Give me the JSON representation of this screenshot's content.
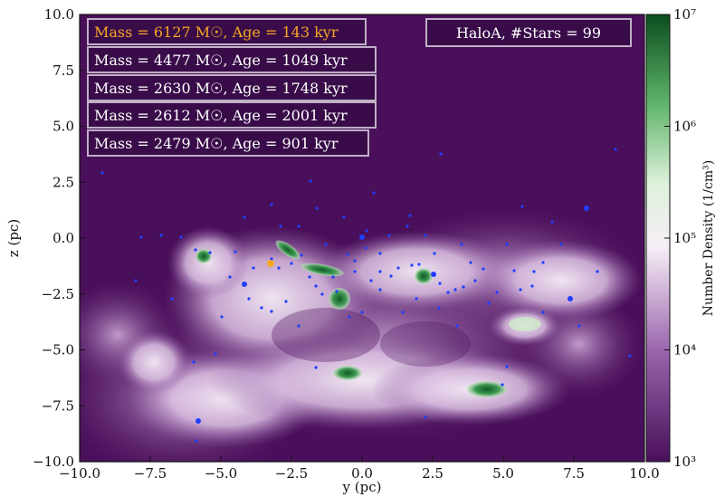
{
  "plot": {
    "xlabel": "y  (pc)",
    "ylabel": "z  (pc)",
    "xlim": [
      -10.0,
      10.0
    ],
    "ylim": [
      -10.0,
      10.0
    ],
    "xticks": [
      "−10.0",
      "−7.5",
      "−5.0",
      "−2.5",
      "0.0",
      "2.5",
      "5.0",
      "7.5",
      "10.0"
    ],
    "yticks": [
      "10.0",
      "7.5",
      "5.0",
      "2.5",
      "0.0",
      "−2.5",
      "−5.0",
      "−7.5",
      "−10.0"
    ],
    "legend_boxes": [
      {
        "text": "Mass = 6127 M☉, Age = 143 kyr",
        "color": "#f5a623"
      },
      {
        "text": "Mass = 4477 M☉, Age = 1049 kyr",
        "color": "#ffffff"
      },
      {
        "text": "Mass = 2630 M☉, Age = 1748 kyr",
        "color": "#ffffff"
      },
      {
        "text": "Mass = 2612 M☉, Age = 2001 kyr",
        "color": "#ffffff"
      },
      {
        "text": "Mass = 2479 M☉, Age = 901 kyr",
        "color": "#ffffff"
      }
    ],
    "info_box": "HaloA, #Stars = 99",
    "colors": {
      "background": "#4a0f5a",
      "gas_mid": "#b98bc6",
      "gas_high": "#f3eaf3",
      "dense": "#1e7a35",
      "star": "#1f3fff",
      "highlight_star": "#f5a623"
    }
  },
  "colorbar": {
    "label": "Number Density  (1/cm³)",
    "ticks": [
      "10⁷",
      "10⁶",
      "10⁵",
      "10⁴",
      "10³"
    ]
  }
}
